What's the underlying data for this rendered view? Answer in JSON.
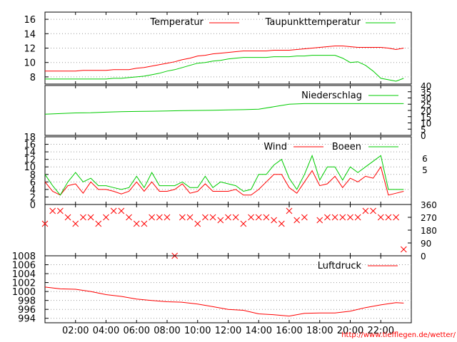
{
  "chart_data": [
    {
      "type": "line",
      "panel": "temperature",
      "ylim": [
        7,
        17
      ],
      "yticks": [
        8,
        10,
        12,
        14,
        16
      ],
      "grid": true,
      "legend_position": "top-right",
      "x": [
        0,
        0.5,
        1,
        1.5,
        2,
        2.5,
        3,
        3.5,
        4,
        4.5,
        5,
        5.5,
        6,
        6.5,
        7,
        7.5,
        8,
        8.5,
        9,
        9.5,
        10,
        10.5,
        11,
        11.5,
        12,
        12.5,
        13,
        13.5,
        14,
        14.5,
        15,
        15.5,
        16,
        16.5,
        17,
        17.5,
        18,
        18.5,
        19,
        19.5,
        20,
        20.5,
        21,
        21.5,
        22,
        22.5,
        23,
        23.5
      ],
      "series": [
        {
          "name": "Temperatur",
          "color": "#ff0000",
          "values": [
            8.8,
            8.8,
            8.8,
            8.8,
            8.8,
            8.9,
            8.9,
            8.9,
            8.9,
            9.0,
            9.0,
            9.0,
            9.2,
            9.3,
            9.5,
            9.7,
            9.9,
            10.1,
            10.4,
            10.6,
            10.9,
            11.0,
            11.2,
            11.3,
            11.4,
            11.5,
            11.6,
            11.6,
            11.6,
            11.6,
            11.7,
            11.7,
            11.7,
            11.8,
            11.9,
            12.0,
            12.1,
            12.2,
            12.3,
            12.3,
            12.2,
            12.1,
            12.1,
            12.1,
            12.1,
            12.0,
            11.8,
            12.0
          ]
        },
        {
          "name": "Taupunkttemperatur",
          "color": "#00cc00",
          "values": [
            7.7,
            7.7,
            7.7,
            7.7,
            7.7,
            7.7,
            7.7,
            7.7,
            7.7,
            7.8,
            7.8,
            7.9,
            8.0,
            8.1,
            8.3,
            8.5,
            8.8,
            9.0,
            9.3,
            9.6,
            9.9,
            10.0,
            10.2,
            10.3,
            10.5,
            10.6,
            10.7,
            10.7,
            10.7,
            10.7,
            10.8,
            10.8,
            10.8,
            10.9,
            10.9,
            11.0,
            11.0,
            11.0,
            11.0,
            10.6,
            10.0,
            10.1,
            9.6,
            8.8,
            7.8,
            7.6,
            7.4,
            7.8
          ]
        }
      ]
    },
    {
      "type": "line",
      "panel": "precipitation",
      "ylim": [
        0,
        40
      ],
      "yticks": [
        0,
        5,
        10,
        15,
        20,
        25,
        30,
        35,
        40
      ],
      "legend_position": "top-right",
      "x": [
        0,
        1,
        2,
        3,
        4,
        5,
        6,
        7,
        8,
        9,
        10,
        11,
        12,
        13,
        14,
        15,
        16,
        17,
        18,
        19,
        20,
        21,
        22,
        23,
        23.5
      ],
      "series": [
        {
          "name": "Niederschlag",
          "color": "#00cc00",
          "values": [
            17,
            17.5,
            18,
            18.2,
            18.6,
            19,
            19.2,
            19.4,
            19.6,
            19.8,
            20,
            20.2,
            20.4,
            20.6,
            21,
            23,
            25,
            25.5,
            25.5,
            25.5,
            25.5,
            25.5,
            25.5,
            25.5,
            25.5
          ]
        }
      ]
    },
    {
      "type": "line",
      "panel": "wind",
      "ylim": [
        0,
        18
      ],
      "yticks": [
        0,
        2,
        4,
        6,
        8,
        10,
        12,
        14,
        16,
        18
      ],
      "right_labels": [
        "6",
        "5"
      ],
      "grid": true,
      "legend_position": "top-right",
      "x": [
        0,
        0.5,
        1,
        1.5,
        2,
        2.5,
        3,
        3.5,
        4,
        4.5,
        5,
        5.5,
        6,
        6.5,
        7,
        7.5,
        8,
        8.5,
        9,
        9.5,
        10,
        10.5,
        11,
        11.5,
        12,
        12.5,
        13,
        13.5,
        14,
        14.5,
        15,
        15.5,
        16,
        16.5,
        17,
        17.5,
        18,
        18.5,
        19,
        19.5,
        20,
        20.5,
        21,
        21.5,
        22,
        22.5,
        23,
        23.5
      ],
      "series": [
        {
          "name": "Wind",
          "color": "#ff0000",
          "values": [
            6,
            3.5,
            2.5,
            5,
            5.5,
            3,
            6,
            4,
            4,
            3.5,
            2.8,
            3.5,
            6,
            3.5,
            6,
            3.5,
            3.5,
            4,
            5.5,
            3,
            3.5,
            5.5,
            3.5,
            3.5,
            3.5,
            4,
            2.5,
            2.5,
            4,
            6,
            8,
            8,
            4.5,
            3,
            6,
            9,
            5,
            5.5,
            7.5,
            4.5,
            7,
            6,
            7.5,
            7,
            10,
            2.5,
            3,
            3.5
          ]
        },
        {
          "name": "Boeen",
          "color": "#00cc00",
          "values": [
            8,
            5,
            2.5,
            6,
            8.5,
            6,
            7,
            5,
            5,
            4.5,
            4,
            4.5,
            7.5,
            4.5,
            8.5,
            5,
            5,
            5,
            6,
            4.5,
            4.5,
            7.5,
            4.5,
            6,
            5.5,
            5,
            3.5,
            4,
            8,
            8,
            10.5,
            12,
            7,
            4,
            8,
            13,
            6.5,
            10,
            10,
            6.5,
            10,
            8.5,
            10,
            11.5,
            13,
            4,
            4,
            4
          ]
        }
      ]
    },
    {
      "type": "scatter",
      "panel": "wind-direction",
      "ylim": [
        0,
        360
      ],
      "yticks": [
        0,
        90,
        180,
        270,
        360
      ],
      "color": "#ff0000",
      "x": [
        0,
        0.5,
        1,
        1.5,
        2,
        2.5,
        3,
        3.5,
        4,
        4.5,
        5,
        5.5,
        6,
        6.5,
        7,
        7.5,
        8,
        8.5,
        9,
        9.5,
        10,
        10.5,
        11,
        11.5,
        12,
        12.5,
        13,
        13.5,
        14,
        14.5,
        15,
        15.5,
        16,
        16.5,
        17,
        17.5,
        18,
        18.5,
        19,
        19.5,
        20,
        20.5,
        21,
        21.5,
        22,
        22.5,
        23,
        23.5
      ],
      "values": [
        225,
        315,
        315,
        270,
        225,
        270,
        270,
        225,
        270,
        315,
        315,
        270,
        225,
        225,
        270,
        270,
        270,
        0,
        270,
        270,
        225,
        270,
        270,
        250,
        270,
        270,
        225,
        270,
        270,
        270,
        250,
        225,
        315,
        250,
        270,
        null,
        250,
        270,
        270,
        270,
        270,
        270,
        315,
        315,
        270,
        270,
        270,
        45
      ]
    },
    {
      "type": "line",
      "panel": "pressure",
      "ylim": [
        993,
        1008
      ],
      "yticks": [
        994,
        996,
        998,
        1000,
        1002,
        1004,
        1006,
        1008
      ],
      "grid": true,
      "legend_position": "top-right",
      "x": [
        0,
        1,
        2,
        3,
        4,
        5,
        6,
        7,
        8,
        9,
        10,
        11,
        12,
        13,
        14,
        15,
        16,
        17,
        18,
        19,
        20,
        21,
        22,
        23,
        23.5
      ],
      "series": [
        {
          "name": "Luftdruck",
          "color": "#ff0000",
          "values": [
            1001,
            1000.6,
            1000.5,
            1000,
            999.3,
            998.9,
            998.3,
            998,
            997.7,
            997.6,
            997.2,
            996.6,
            996,
            995.8,
            995,
            994.8,
            994.5,
            995.1,
            995.2,
            995.2,
            995.6,
            996.4,
            997,
            997.5,
            997.4
          ]
        }
      ]
    }
  ],
  "xaxis": {
    "ticks": [
      2,
      4,
      6,
      8,
      10,
      12,
      14,
      16,
      18,
      20,
      22
    ],
    "labels": [
      "02:00",
      "04:00",
      "06:00",
      "08:00",
      "10:00",
      "12:00",
      "14:00",
      "16:00",
      "18:00",
      "20:00",
      "22:00"
    ],
    "range": [
      0,
      24
    ]
  },
  "source_url": "http://www.tiefflegen.de/wetter/"
}
